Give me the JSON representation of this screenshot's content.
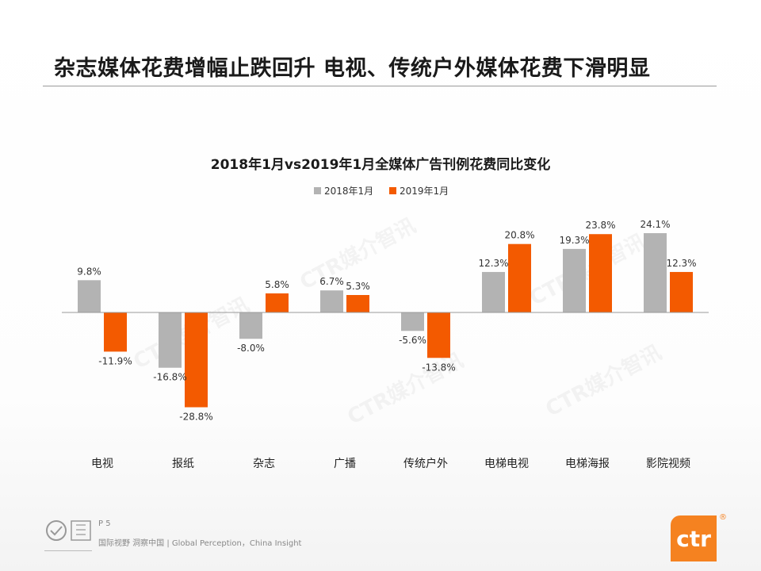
{
  "page": {
    "title": "杂志媒体花费增幅止跌回升 电视、传统户外媒体花费下滑明显",
    "page_number": "P 5",
    "footer_text": "国际视野 洞察中国 | Global Perception，China Insight",
    "logo_text": "ctr",
    "logo_reg": "®",
    "watermark_text": "CTR媒介智讯",
    "colors": {
      "accent": "#f58220",
      "gray_bar": "#b3b3b3",
      "orange_bar": "#f35a00"
    }
  },
  "chart_data": {
    "type": "bar",
    "title": "2018年1月vs2019年1月全媒体广告刊例花费同比变化",
    "categories": [
      "电视",
      "报纸",
      "杂志",
      "广播",
      "传统户外",
      "电梯电视",
      "电梯海报",
      "影院视频"
    ],
    "series": [
      {
        "name": "2018年1月",
        "color": "#b3b3b3",
        "values": [
          9.8,
          -16.8,
          -8.0,
          6.7,
          -5.6,
          12.3,
          19.3,
          24.1
        ]
      },
      {
        "name": "2019年1月",
        "color": "#f35a00",
        "values": [
          -11.9,
          -28.8,
          5.8,
          5.3,
          -13.8,
          20.8,
          23.8,
          12.3
        ]
      }
    ],
    "labels": [
      [
        "9.8%",
        "-16.8%",
        "-8.0%",
        "6.7%",
        "-5.6%",
        "12.3%",
        "19.3%",
        "24.1%"
      ],
      [
        "-11.9%",
        "-28.8%",
        "5.8%",
        "5.3%",
        "-13.8%",
        "20.8%",
        "23.8%",
        "12.3%"
      ]
    ],
    "xlabel": "",
    "ylabel": "",
    "ylim": [
      -35,
      30
    ],
    "grid": false,
    "legend": "top-center"
  }
}
